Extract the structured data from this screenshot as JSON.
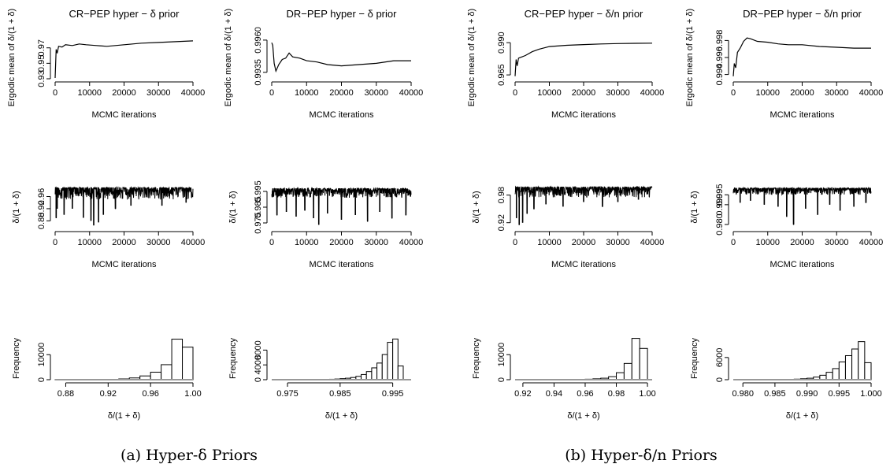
{
  "captions": {
    "a": "(a) Hyper-δ Priors",
    "b": "(b) Hyper-δ/n Priors"
  },
  "chart_data": [
    {
      "panel": "CR-PEP hyper-delta / ergodic",
      "type": "line",
      "title": "CR−PEP hyper − δ prior",
      "xlabel": "MCMC iterations",
      "ylabel": "Ergodic mean of δ/(1 + δ)",
      "xlim": [
        0,
        40000
      ],
      "ylim": [
        0.93,
        0.985
      ],
      "xticks": [
        0,
        10000,
        20000,
        30000,
        40000
      ],
      "yticks": [
        "0.93",
        "0.95",
        "0.97"
      ],
      "x": [
        0,
        300,
        600,
        1000,
        2000,
        3000,
        5000,
        7000,
        9000,
        12000,
        15000,
        20000,
        25000,
        30000,
        35000,
        40000
      ],
      "y": [
        0.931,
        0.968,
        0.963,
        0.972,
        0.971,
        0.974,
        0.973,
        0.975,
        0.974,
        0.973,
        0.972,
        0.974,
        0.976,
        0.977,
        0.978,
        0.979
      ]
    },
    {
      "panel": "DR-PEP hyper-delta / ergodic",
      "type": "line",
      "title": "DR−PEP hyper − δ prior",
      "xlabel": "MCMC iterations",
      "ylabel": "Ergodic mean of δ/(1 + δ)",
      "xlim": [
        0,
        40000
      ],
      "ylim": [
        0.993,
        0.9963
      ],
      "xticks": [
        0,
        10000,
        20000,
        30000,
        40000
      ],
      "yticks": [
        "0.9935",
        "0.9960"
      ],
      "x": [
        0,
        300,
        700,
        1200,
        2000,
        3000,
        4000,
        5000,
        6000,
        8000,
        10000,
        13000,
        16000,
        20000,
        25000,
        30000,
        35000,
        40000
      ],
      "y": [
        0.9958,
        0.9956,
        0.9942,
        0.9936,
        0.9941,
        0.9945,
        0.9946,
        0.995,
        0.9947,
        0.9946,
        0.9944,
        0.9943,
        0.9941,
        0.994,
        0.9941,
        0.9942,
        0.9944,
        0.9944
      ]
    },
    {
      "panel": "CR-PEP hyper-delta/n / ergodic",
      "type": "line",
      "title": "CR−PEP hyper − δ/n prior",
      "xlabel": "MCMC iterations",
      "ylabel": "Ergodic mean of δ/(1 + δ)",
      "xlim": [
        0,
        40000
      ],
      "ylim": [
        0.962,
        0.995
      ],
      "xticks": [
        0,
        10000,
        20000,
        30000,
        40000
      ],
      "yticks": [
        "0.965",
        "0.990"
      ],
      "x": [
        0,
        300,
        600,
        1000,
        2000,
        3000,
        5000,
        7000,
        10000,
        15000,
        20000,
        25000,
        30000,
        35000,
        40000
      ],
      "y": [
        0.964,
        0.977,
        0.972,
        0.978,
        0.979,
        0.98,
        0.983,
        0.985,
        0.987,
        0.988,
        0.9885,
        0.989,
        0.9893,
        0.9895,
        0.9896
      ]
    },
    {
      "panel": "DR-PEP hyper-delta/n / ergodic",
      "type": "line",
      "title": "DR−PEP hyper − δ/n prior",
      "xlabel": "MCMC iterations",
      "ylabel": "Ergodic mean of δ/(1 + δ)",
      "xlim": [
        0,
        40000
      ],
      "ylim": [
        0.9935,
        0.9985
      ],
      "xticks": [
        0,
        10000,
        20000,
        30000,
        40000
      ],
      "yticks": [
        "0.994",
        "0.996",
        "0.998"
      ],
      "x": [
        0,
        300,
        700,
        1200,
        2000,
        3000,
        4000,
        5000,
        7000,
        10000,
        13000,
        16000,
        20000,
        25000,
        30000,
        35000,
        40000
      ],
      "y": [
        0.9938,
        0.9953,
        0.9948,
        0.9966,
        0.9971,
        0.9979,
        0.9983,
        0.9982,
        0.9979,
        0.9978,
        0.9976,
        0.9975,
        0.9975,
        0.9973,
        0.9972,
        0.9971,
        0.9971
      ]
    },
    {
      "panel": "CR-PEP hyper-delta / trace",
      "type": "line",
      "title": "",
      "xlabel": "MCMC iterations",
      "ylabel": "δ/(1 + δ)",
      "xlim": [
        0,
        40000
      ],
      "ylim": [
        0.855,
        0.995
      ],
      "xticks": [
        0,
        10000,
        20000,
        30000,
        40000
      ],
      "yticks": [
        "0.88",
        "0.92",
        "0.96"
      ],
      "trace_top": 0.99,
      "trace_floor": 0.95,
      "dips": [
        [
          300,
          0.89
        ],
        [
          600,
          0.92
        ],
        [
          2600,
          0.9
        ],
        [
          5000,
          0.92
        ],
        [
          8200,
          0.89
        ],
        [
          10400,
          0.88
        ],
        [
          11200,
          0.865
        ],
        [
          12600,
          0.875
        ],
        [
          14000,
          0.9
        ],
        [
          17500,
          0.92
        ],
        [
          22000,
          0.93
        ],
        [
          31000,
          0.93
        ],
        [
          38000,
          0.94
        ]
      ]
    },
    {
      "panel": "DR-PEP hyper-delta / trace",
      "type": "line",
      "title": "",
      "xlabel": "MCMC iterations",
      "ylabel": "δ/(1 + δ)",
      "xlim": [
        0,
        40000
      ],
      "ylim": [
        0.9715,
        0.9985
      ],
      "xticks": [
        0,
        10000,
        20000,
        30000,
        40000
      ],
      "yticks": [
        "0.975",
        "0.985",
        "0.995"
      ],
      "trace_top": 0.997,
      "trace_floor": 0.991,
      "dips": [
        [
          1500,
          0.98
        ],
        [
          4200,
          0.982
        ],
        [
          7000,
          0.979
        ],
        [
          9500,
          0.983
        ],
        [
          12000,
          0.978
        ],
        [
          13500,
          0.974
        ],
        [
          16000,
          0.981
        ],
        [
          20000,
          0.977
        ],
        [
          24000,
          0.98
        ],
        [
          27500,
          0.976
        ],
        [
          31000,
          0.982
        ],
        [
          34500,
          0.978
        ],
        [
          38500,
          0.98
        ]
      ]
    },
    {
      "panel": "CR-PEP hyper-delta/n / trace",
      "type": "line",
      "title": "",
      "xlabel": "MCMC iterations",
      "ylabel": "δ/(1 + δ)",
      "xlim": [
        0,
        40000
      ],
      "ylim": [
        0.9075,
        1.0
      ],
      "xticks": [
        0,
        10000,
        20000,
        30000,
        40000
      ],
      "yticks": [
        "0.92",
        "0.98"
      ],
      "trace_top": 0.998,
      "trace_floor": 0.975,
      "dips": [
        [
          400,
          0.93
        ],
        [
          1200,
          0.915
        ],
        [
          2200,
          0.92
        ],
        [
          3500,
          0.94
        ],
        [
          5500,
          0.95
        ],
        [
          9000,
          0.96
        ],
        [
          14000,
          0.955
        ],
        [
          20000,
          0.965
        ],
        [
          25500,
          0.955
        ],
        [
          30000,
          0.965
        ],
        [
          36000,
          0.97
        ]
      ]
    },
    {
      "panel": "DR-PEP hyper-delta/n / trace",
      "type": "line",
      "title": "",
      "xlabel": "MCMC iterations",
      "ylabel": "δ/(1 + δ)",
      "xlim": [
        0,
        40000
      ],
      "ylim": [
        0.978,
        0.9995
      ],
      "xticks": [
        0,
        10000,
        20000,
        30000,
        40000
      ],
      "yticks": [
        "0.980",
        "0.990",
        "0.995"
      ],
      "trace_top": 0.9985,
      "trace_floor": 0.995,
      "dips": [
        [
          2000,
          0.991
        ],
        [
          5000,
          0.992
        ],
        [
          9000,
          0.99
        ],
        [
          13000,
          0.989
        ],
        [
          15500,
          0.984
        ],
        [
          17500,
          0.98
        ],
        [
          21000,
          0.988
        ],
        [
          24500,
          0.985
        ],
        [
          28000,
          0.99
        ],
        [
          31000,
          0.987
        ],
        [
          35000,
          0.989
        ],
        [
          38500,
          0.991
        ]
      ]
    },
    {
      "panel": "CR-PEP hyper-delta / histogram",
      "type": "bar",
      "title": "",
      "xlabel": "δ/(1 + δ)",
      "ylabel": "Frequency",
      "xlim": [
        0.87,
        1.0
      ],
      "ylim": [
        0,
        17000
      ],
      "xticks": [
        "0.88",
        "0.92",
        "0.96",
        "1.00"
      ],
      "yticks": [
        "0",
        "10000"
      ],
      "bin_edges": [
        0.87,
        0.88,
        0.89,
        0.9,
        0.91,
        0.92,
        0.93,
        0.94,
        0.95,
        0.96,
        0.97,
        0.98,
        0.99,
        1.0
      ],
      "values": [
        10,
        20,
        30,
        50,
        80,
        150,
        300,
        700,
        1500,
        3000,
        6000,
        16200,
        13000
      ]
    },
    {
      "panel": "DR-PEP hyper-delta / histogram",
      "type": "bar",
      "title": "",
      "xlabel": "δ/(1 + δ)",
      "ylabel": "Frequency",
      "xlim": [
        0.972,
        0.9985
      ],
      "ylim": [
        0,
        11500
      ],
      "xticks": [
        "0.975",
        "0.985",
        "0.995"
      ],
      "yticks": [
        "0",
        "4000",
        "8000"
      ],
      "bin_edges": [
        0.978,
        0.979,
        0.98,
        0.981,
        0.982,
        0.983,
        0.984,
        0.985,
        0.986,
        0.987,
        0.988,
        0.989,
        0.99,
        0.991,
        0.992,
        0.993,
        0.994,
        0.995,
        0.996,
        0.997,
        0.998
      ],
      "values": [
        10,
        20,
        30,
        50,
        80,
        120,
        180,
        280,
        400,
        600,
        900,
        1400,
        2200,
        3200,
        4500,
        6800,
        10100,
        11000,
        3700,
        0
      ]
    },
    {
      "panel": "CR-PEP hyper-delta/n / histogram",
      "type": "bar",
      "title": "",
      "xlabel": "δ/(1 + δ)",
      "ylabel": "Frequency",
      "xlim": [
        0.915,
        1.003
      ],
      "ylim": [
        0,
        17000
      ],
      "xticks": [
        "0.92",
        "0.94",
        "0.96",
        "0.98",
        "1.00"
      ],
      "yticks": [
        "0",
        "10000"
      ],
      "bin_edges": [
        0.93,
        0.935,
        0.94,
        0.945,
        0.95,
        0.955,
        0.96,
        0.965,
        0.97,
        0.975,
        0.98,
        0.985,
        0.99,
        0.995,
        1.0
      ],
      "values": [
        10,
        20,
        30,
        50,
        80,
        120,
        200,
        350,
        600,
        1200,
        2800,
        6500,
        16500,
        12500
      ]
    },
    {
      "panel": "DR-PEP hyper-delta/n / histogram",
      "type": "bar",
      "title": "",
      "xlabel": "δ/(1 + δ)",
      "ylabel": "Frequency",
      "xlim": [
        0.9785,
        1.0
      ],
      "ylim": [
        0,
        11500
      ],
      "xticks": [
        "0.980",
        "0.985",
        "0.990",
        "0.995",
        "1.000"
      ],
      "yticks": [
        "0",
        "6000"
      ],
      "bin_edges": [
        0.985,
        0.986,
        0.987,
        0.988,
        0.989,
        0.99,
        0.991,
        0.992,
        0.993,
        0.994,
        0.995,
        0.996,
        0.997,
        0.998,
        0.999,
        1.0
      ],
      "values": [
        20,
        40,
        80,
        150,
        250,
        400,
        700,
        1200,
        2000,
        3000,
        4800,
        6500,
        8300,
        10300,
        4600
      ]
    }
  ]
}
